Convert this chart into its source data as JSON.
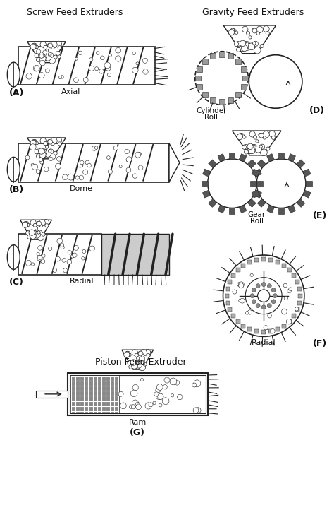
{
  "bg_color": "#ffffff",
  "title_screw": "Screw Feed Extruders",
  "title_gravity": "Gravity Feed Extruders",
  "title_piston": "Piston Feed Extruder",
  "label_A": "(A)",
  "label_B": "(B)",
  "label_C": "(C)",
  "label_D": "(D)",
  "label_E": "(E)",
  "label_F": "(F)",
  "label_G": "(G)",
  "name_A": "Axial",
  "name_B": "Dome",
  "name_C": "Radial",
  "name_D_line1": "Cylinder",
  "name_D_line2": "Roll",
  "name_E_line1": "Gear",
  "name_E_line2": "Roll",
  "name_F": "Radial",
  "name_G": "Ram",
  "line_color": "#222222",
  "fill_light": "#d0d0d0",
  "fill_dark": "#555555",
  "fill_mid": "#888888",
  "text_color": "#111111"
}
